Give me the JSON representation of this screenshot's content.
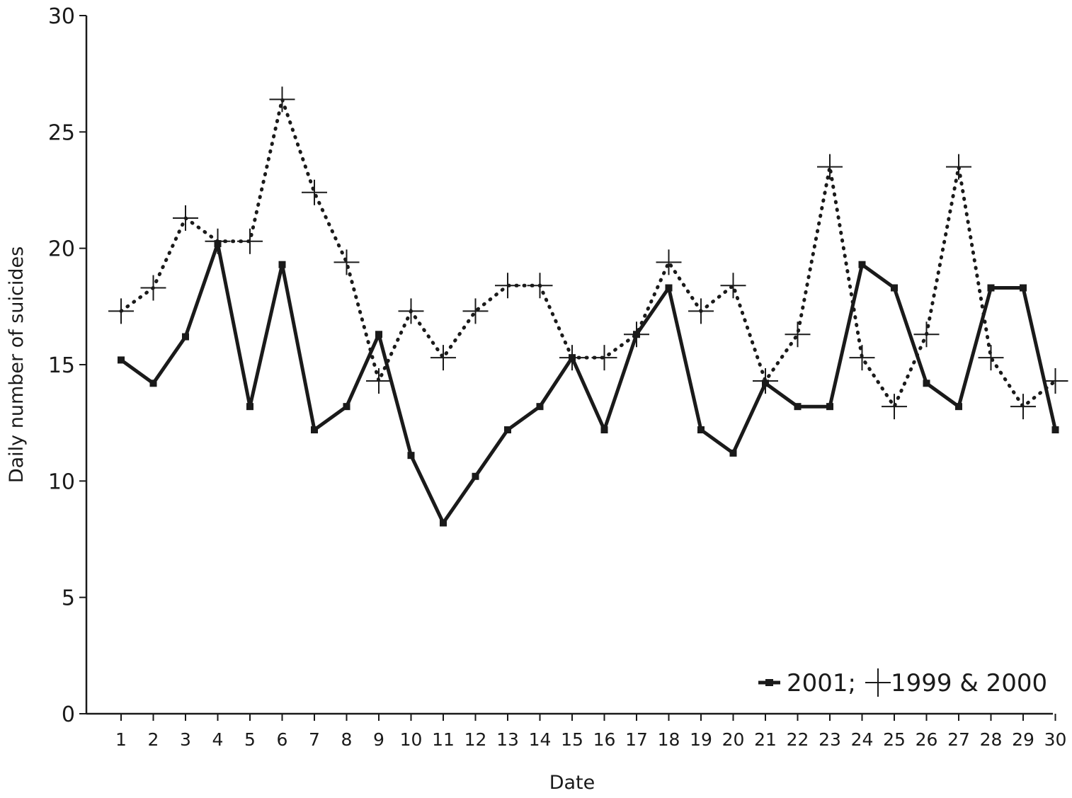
{
  "chart_data": {
    "type": "line",
    "xlabel": "Date",
    "ylabel": "Daily number of suicides",
    "ylim": [
      0,
      30
    ],
    "yticks": [
      0,
      5,
      10,
      15,
      20,
      25,
      30
    ],
    "x": [
      1,
      2,
      3,
      4,
      5,
      6,
      7,
      8,
      9,
      10,
      11,
      12,
      13,
      14,
      15,
      16,
      17,
      18,
      19,
      20,
      21,
      22,
      23,
      24,
      25,
      26,
      27,
      28,
      29,
      30
    ],
    "series": [
      {
        "name": "2001;",
        "style": "solid",
        "marker": "square",
        "values": [
          15.2,
          14.2,
          16.2,
          20.2,
          13.2,
          19.3,
          12.2,
          13.2,
          16.3,
          11.1,
          8.2,
          10.2,
          12.2,
          13.2,
          15.3,
          12.2,
          16.3,
          18.3,
          12.2,
          11.2,
          14.2,
          13.2,
          13.2,
          19.3,
          18.3,
          14.2,
          13.2,
          18.3,
          18.3,
          12.2
        ]
      },
      {
        "name": "1999 & 2000",
        "style": "dotted",
        "marker": "plus",
        "values": [
          17.3,
          18.3,
          21.3,
          20.3,
          20.3,
          26.4,
          22.4,
          19.4,
          14.3,
          17.3,
          15.3,
          17.3,
          18.4,
          18.4,
          15.3,
          15.3,
          16.3,
          19.4,
          17.3,
          18.4,
          14.3,
          16.3,
          23.5,
          15.3,
          13.2,
          16.3,
          23.5,
          15.3,
          13.2,
          14.3
        ]
      }
    ],
    "legend_position": "bottom-right"
  }
}
